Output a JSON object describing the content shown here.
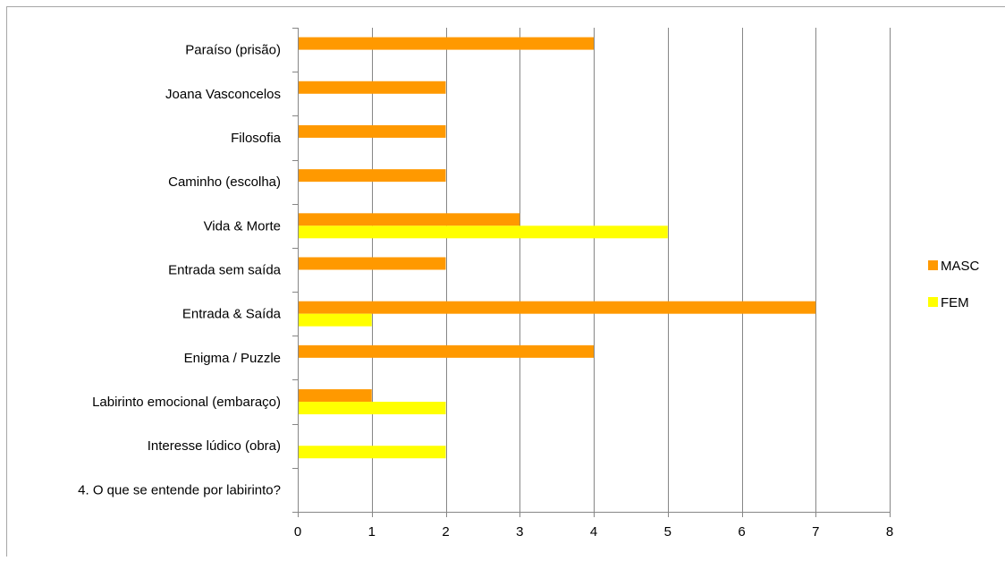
{
  "chart_data": {
    "type": "bar",
    "orientation": "horizontal",
    "categories": [
      "Paraíso (prisão)",
      "Joana Vasconcelos",
      "Filosofia",
      "Caminho (escolha)",
      "Vida & Morte",
      "Entrada sem saída",
      "Entrada & Saída",
      "Enigma / Puzzle",
      "Labirinto emocional (embaraço)",
      "Interesse lúdico (obra)",
      "4. O que se entende por labirinto?"
    ],
    "series": [
      {
        "name": "MASC",
        "color": "#ff9900",
        "values": [
          4,
          2,
          2,
          2,
          3,
          2,
          7,
          4,
          1,
          0,
          0
        ]
      },
      {
        "name": "FEM",
        "color": "#ffff00",
        "values": [
          0,
          0,
          0,
          0,
          5,
          0,
          1,
          0,
          2,
          2,
          0
        ]
      }
    ],
    "x_ticks": [
      "0",
      "1",
      "2",
      "3",
      "4",
      "5",
      "6",
      "7",
      "8"
    ],
    "xlim": [
      0,
      8
    ],
    "grid": "vertical-major",
    "legend_position": "right"
  }
}
